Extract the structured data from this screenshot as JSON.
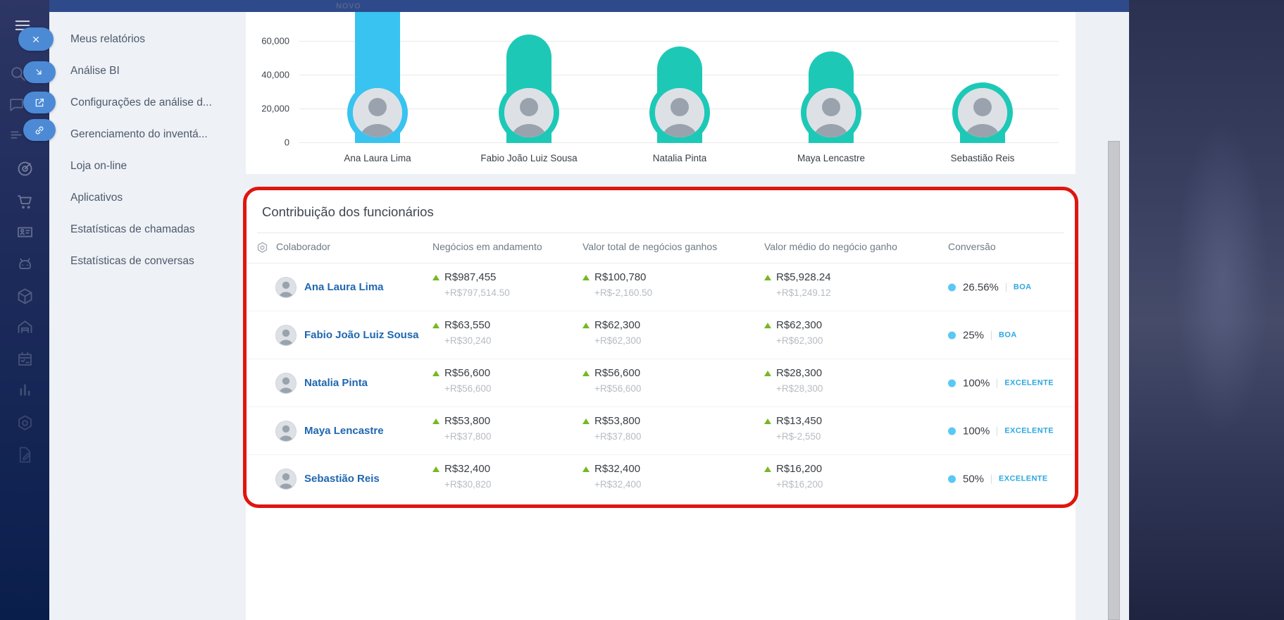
{
  "topbar": {
    "novo_label": "NOVO"
  },
  "icon_rail": {
    "items": [
      "hamburger-menu-icon",
      "close-icon",
      "search-icon",
      "collapse-arrow-icon",
      "chat-icon",
      "open-in-new-icon",
      "list-icon",
      "link-icon",
      "target-icon",
      "cart-icon",
      "id-card-icon",
      "robot-icon",
      "package-icon",
      "warehouse-icon",
      "calendar-icon",
      "bar-chart-icon",
      "nut-icon",
      "document-edit-icon"
    ]
  },
  "sidebar": {
    "menu_items": [
      "Meus relatórios",
      "Análise BI",
      "Configurações de análise d...",
      "Gerenciamento do inventá...",
      "Loja on-line",
      "Aplicativos",
      "Estatísticas de chamadas",
      "Estatísticas de conversas"
    ]
  },
  "chart_data": {
    "type": "bar",
    "title": "",
    "categories": [
      "Ana Laura Lima",
      "Fabio João Luiz Sousa",
      "Natalia Pinta",
      "Maya Lencastre",
      "Sebastião Reis"
    ],
    "values": [
      987455,
      63550,
      56600,
      53800,
      32400
    ],
    "bar_colors": [
      "#38c3f0",
      "#1dc9b6",
      "#1dc9b6",
      "#1dc9b6",
      "#1dc9b6"
    ],
    "ytick_labels": [
      "60,000",
      "40,000",
      "20,000",
      "0"
    ],
    "ytick_values": [
      60000,
      40000,
      20000,
      0
    ],
    "ylim": [
      0,
      70000
    ],
    "xlabel": "",
    "ylabel": "",
    "grid": true,
    "legend": false
  },
  "table": {
    "title": "Contribuição dos funcionários",
    "headers": [
      "Colaborador",
      "Negócios em andamento",
      "Valor total de negócios ganhos",
      "Valor médio do negócio ganho",
      "Conversão"
    ],
    "rows": [
      {
        "name": "Ana Laura Lima",
        "deals_value": "R$987,455",
        "deals_delta": "+R$797,514.50",
        "total_value": "R$100,780",
        "total_delta": "+R$-2,160.50",
        "avg_value": "R$5,928.24",
        "avg_delta": "+R$1,249.12",
        "conversion": "26.56%",
        "status": "BOA"
      },
      {
        "name": "Fabio João Luiz Sousa",
        "deals_value": "R$63,550",
        "deals_delta": "+R$30,240",
        "total_value": "R$62,300",
        "total_delta": "+R$62,300",
        "avg_value": "R$62,300",
        "avg_delta": "+R$62,300",
        "conversion": "25%",
        "status": "BOA"
      },
      {
        "name": "Natalia Pinta",
        "deals_value": "R$56,600",
        "deals_delta": "+R$56,600",
        "total_value": "R$56,600",
        "total_delta": "+R$56,600",
        "avg_value": "R$28,300",
        "avg_delta": "+R$28,300",
        "conversion": "100%",
        "status": "EXCELENTE"
      },
      {
        "name": "Maya Lencastre",
        "deals_value": "R$53,800",
        "deals_delta": "+R$37,800",
        "total_value": "R$53,800",
        "total_delta": "+R$37,800",
        "avg_value": "R$13,450",
        "avg_delta": "+R$-2,550",
        "conversion": "100%",
        "status": "EXCELENTE"
      },
      {
        "name": "Sebastião Reis",
        "deals_value": "R$32,400",
        "deals_delta": "+R$30,820",
        "total_value": "R$32,400",
        "total_delta": "+R$32,400",
        "avg_value": "R$16,200",
        "avg_delta": "+R$16,200",
        "conversion": "50%",
        "status": "EXCELENTE"
      }
    ]
  },
  "colors": {
    "highlight_frame": "#e0150f",
    "bar_blue": "#38c3f0",
    "bar_teal": "#1dc9b6",
    "link_blue": "#2067b0",
    "status_blue": "#2ea7e0",
    "delta_green": "#76b822",
    "conversion_dot": "#5ac8f5",
    "topbar_navy": "#2e4a8b",
    "panel_gray": "#eef1f6"
  }
}
